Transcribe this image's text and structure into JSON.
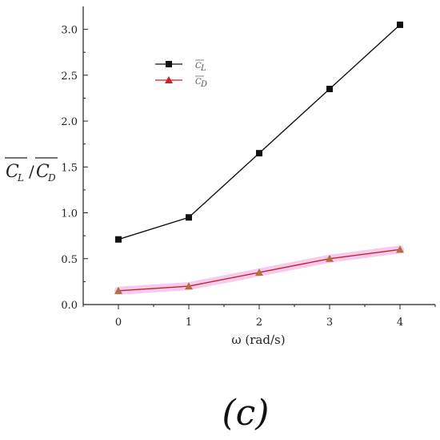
{
  "chart_data": {
    "type": "line",
    "x": [
      0,
      1,
      2,
      3,
      4
    ],
    "xlabel": "ω (rad/s)",
    "ylabel_a": "C",
    "ylabel_a_sub": "L",
    "ylabel_sep": "/",
    "ylabel_b": "C",
    "ylabel_b_sub": "D",
    "xlim": [
      -0.5,
      4.5
    ],
    "ylim": [
      0,
      3.25
    ],
    "xticks": [
      "0",
      "1",
      "2",
      "3",
      "4"
    ],
    "yticks": [
      "0.0",
      "0.5",
      "1.0",
      "1.5",
      "2.0",
      "2.5",
      "3.0"
    ],
    "grid": false,
    "legend_position": "top-left",
    "series": [
      {
        "name": "C",
        "name_sub": "L",
        "values": [
          0.71,
          0.95,
          1.65,
          2.35,
          3.05
        ],
        "marker": "square",
        "color": "#111111"
      },
      {
        "name": "C",
        "name_sub": "D",
        "values": [
          0.15,
          0.2,
          0.35,
          0.5,
          0.6
        ],
        "marker": "triangle",
        "color": "#cc2222",
        "marker_color": "#b07040",
        "glow_color": "#f3c3ee"
      }
    ],
    "panel_label": "(c)"
  }
}
